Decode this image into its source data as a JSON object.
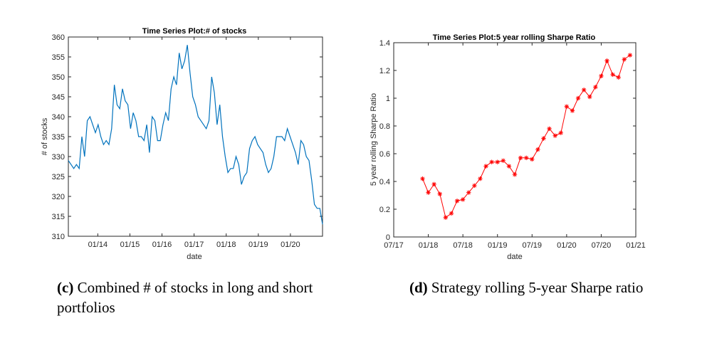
{
  "colors": {
    "series_c": "#0072BD",
    "series_d": "#FF0000",
    "axis": "#262626"
  },
  "captions": {
    "c": {
      "label": "(c)",
      "text": " Combined # of stocks in long and short portfolios"
    },
    "d": {
      "label": "(d)",
      "text": " Strategy rolling 5-year Sharpe ratio"
    }
  },
  "chart_data": [
    {
      "type": "line",
      "title": "Time Series Plot:# of stocks",
      "xlabel": "date",
      "ylabel": "# of stocks",
      "ylim": [
        310,
        360
      ],
      "yticks": [
        "310",
        "315",
        "320",
        "325",
        "330",
        "335",
        "340",
        "345",
        "350",
        "355",
        "360"
      ],
      "xticks": [
        "01/14",
        "01/15",
        "01/16",
        "01/17",
        "01/18",
        "01/19",
        "01/20"
      ],
      "xlim_months": [
        0,
        95
      ],
      "xtick_months": [
        11,
        23,
        35,
        47,
        59,
        71,
        83
      ],
      "series": [
        {
          "name": "# of stocks",
          "values": [
            329,
            328,
            327,
            328,
            327,
            335,
            330,
            339,
            340,
            338,
            336,
            338,
            335,
            333,
            334,
            333,
            337,
            348,
            343,
            342,
            347,
            344,
            343,
            337,
            341,
            339,
            335,
            335,
            334,
            338,
            331,
            340,
            339,
            334,
            334,
            338,
            341,
            339,
            347,
            350,
            348,
            356,
            352,
            354,
            358,
            351,
            345,
            343,
            340,
            339,
            338,
            337,
            339,
            350,
            346,
            338,
            343,
            335,
            330,
            326,
            327,
            327,
            330,
            328,
            323,
            325,
            326,
            332,
            334,
            335,
            333,
            332,
            331,
            328,
            326,
            327,
            330,
            335,
            335,
            335,
            334,
            337,
            335,
            333,
            331,
            328,
            334,
            333,
            330,
            329,
            324,
            318,
            317,
            317,
            313
          ]
        }
      ]
    },
    {
      "type": "line",
      "title": "Time Series Plot:5 year rolling Sharpe Ratio",
      "xlabel": "date",
      "ylabel": "5 year rolling Sharpe Ratio",
      "ylim": [
        0,
        1.4
      ],
      "yticks": [
        "0",
        "0.2",
        "0.4",
        "0.6",
        "0.8",
        "1",
        "1.2",
        "1.4"
      ],
      "xticks": [
        "07/17",
        "01/18",
        "07/18",
        "01/19",
        "07/19",
        "01/20",
        "07/20",
        "01/21"
      ],
      "xlim_months": [
        0,
        42
      ],
      "xtick_months": [
        0,
        6,
        12,
        18,
        24,
        30,
        36,
        42
      ],
      "series": [
        {
          "name": "Sharpe ratio",
          "x_months": [
            5,
            6,
            7,
            8,
            9,
            10,
            11,
            12,
            13,
            14,
            15,
            16,
            17,
            18,
            19,
            20,
            21,
            22,
            23,
            24,
            25,
            26,
            27,
            28,
            29,
            30,
            31,
            32,
            33,
            34,
            35,
            36,
            37,
            38,
            39,
            40,
            41
          ],
          "values": [
            0.42,
            0.32,
            0.38,
            0.31,
            0.14,
            0.17,
            0.26,
            0.27,
            0.32,
            0.37,
            0.42,
            0.51,
            0.54,
            0.54,
            0.55,
            0.51,
            0.45,
            0.57,
            0.57,
            0.56,
            0.63,
            0.71,
            0.78,
            0.73,
            0.75,
            0.94,
            0.91,
            1.0,
            1.06,
            1.01,
            1.08,
            1.16,
            1.27,
            1.17,
            1.15,
            1.28,
            1.31
          ]
        }
      ]
    }
  ]
}
